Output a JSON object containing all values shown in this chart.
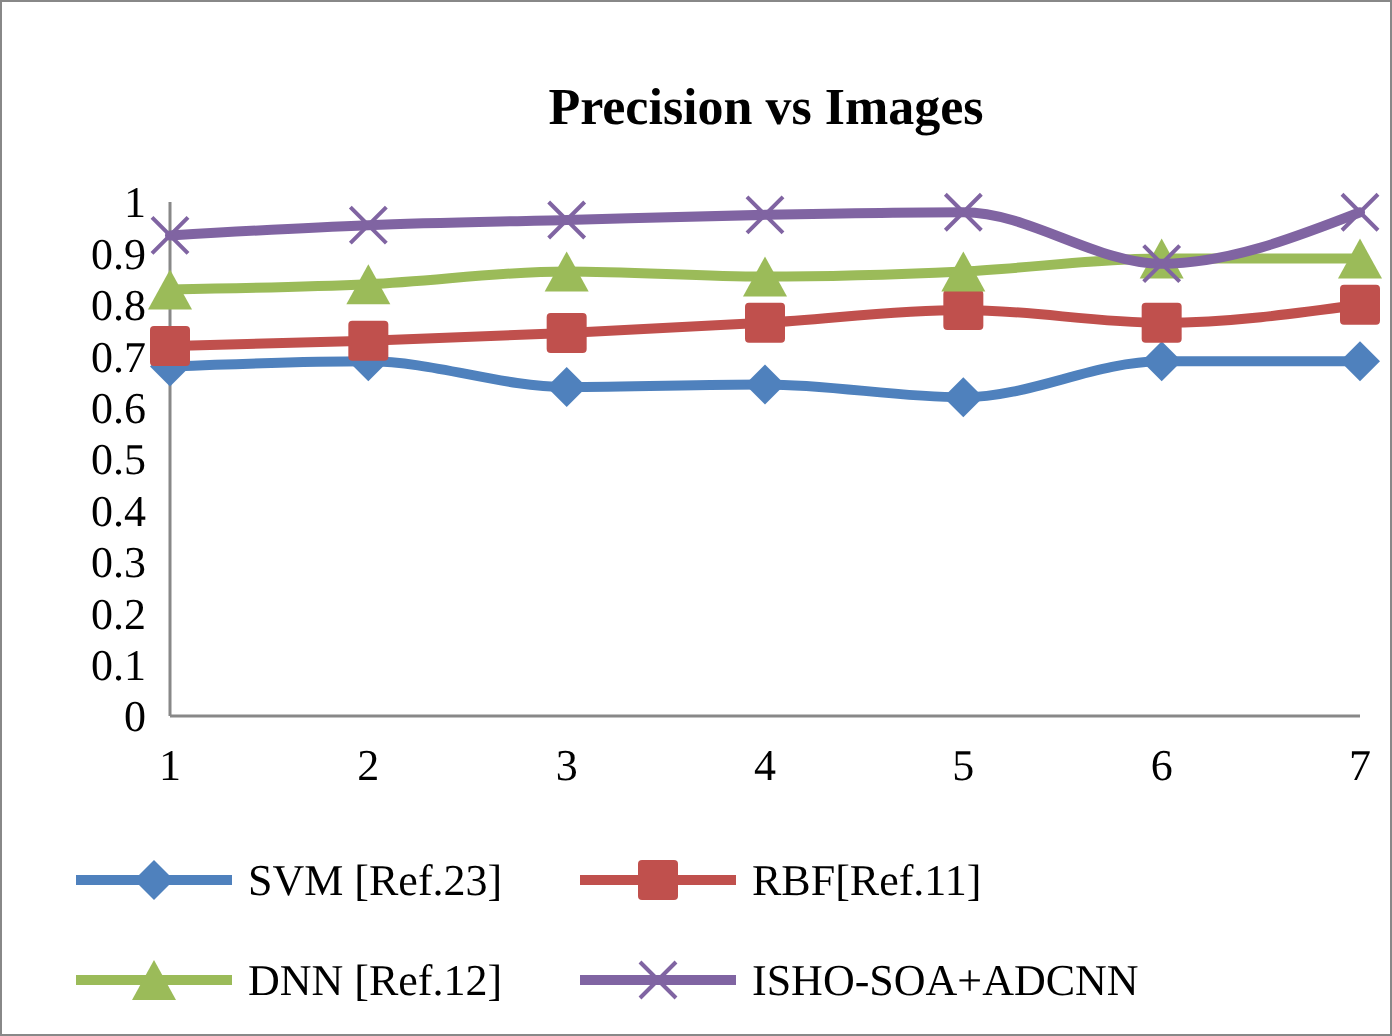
{
  "chart_data": {
    "type": "line",
    "title": "Precision vs Images",
    "categories": [
      "1",
      "2",
      "3",
      "4",
      "5",
      "6",
      "7"
    ],
    "ylim": [
      0,
      1
    ],
    "yticks": [
      0,
      0.1,
      0.2,
      0.3,
      0.4,
      0.5,
      0.6,
      0.7,
      0.8,
      0.9,
      1
    ],
    "grid": false,
    "legend": "bottom",
    "line_style": "solid",
    "series": [
      {
        "name": "SVM [Ref.23]",
        "color": "#4f81bd",
        "marker": "diamond",
        "values": [
          0.68,
          0.69,
          0.64,
          0.645,
          0.62,
          0.69,
          0.69
        ]
      },
      {
        "name": "RBF[Ref.11]",
        "color": "#c0504d",
        "marker": "square",
        "values": [
          0.72,
          0.73,
          0.745,
          0.765,
          0.79,
          0.765,
          0.8
        ]
      },
      {
        "name": "DNN [Ref.12]",
        "color": "#9bbb59",
        "marker": "triangle",
        "values": [
          0.83,
          0.84,
          0.865,
          0.855,
          0.865,
          0.89,
          0.89
        ]
      },
      {
        "name": "ISHO-SOA+ADCNN",
        "color": "#8064a2",
        "marker": "cross",
        "values": [
          0.935,
          0.955,
          0.965,
          0.975,
          0.98,
          0.88,
          0.98
        ]
      }
    ]
  }
}
